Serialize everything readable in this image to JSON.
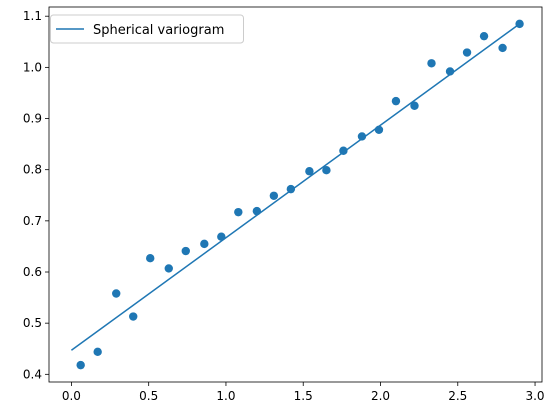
{
  "chart_data": {
    "type": "scatter",
    "title": "",
    "xlabel": "",
    "ylabel": "",
    "xlim": [
      -0.145,
      3.045
    ],
    "ylim": [
      0.385,
      1.118
    ],
    "xticks": [
      0.0,
      0.5,
      1.0,
      1.5,
      2.0,
      2.5,
      3.0
    ],
    "xtick_labels": [
      "0.0",
      "0.5",
      "1.0",
      "1.5",
      "2.0",
      "2.5",
      "3.0"
    ],
    "yticks": [
      0.4,
      0.5,
      0.6,
      0.7,
      0.8,
      0.9,
      1.0,
      1.1
    ],
    "ytick_labels": [
      "0.4",
      "0.5",
      "0.6",
      "0.7",
      "0.8",
      "0.9",
      "1.0",
      "1.1"
    ],
    "grid": false,
    "legend_position": "top-left",
    "series": [
      {
        "kind": "points",
        "color": "#1f77b4",
        "x": [
          0.06,
          0.17,
          0.29,
          0.4,
          0.51,
          0.63,
          0.74,
          0.86,
          0.97,
          1.08,
          1.2,
          1.31,
          1.42,
          1.54,
          1.65,
          1.76,
          1.88,
          1.99,
          2.1,
          2.22,
          2.33,
          2.45,
          2.56,
          2.67,
          2.79,
          2.9
        ],
        "y": [
          0.418,
          0.444,
          0.558,
          0.513,
          0.627,
          0.607,
          0.641,
          0.655,
          0.669,
          0.717,
          0.719,
          0.749,
          0.762,
          0.797,
          0.799,
          0.837,
          0.865,
          0.878,
          0.934,
          0.925,
          1.008,
          0.992,
          1.029,
          1.061,
          1.038,
          1.085
        ]
      },
      {
        "kind": "line",
        "name": "Spherical variogram",
        "color": "#1f77b4",
        "x": [
          0.0,
          2.9
        ],
        "y": [
          0.447,
          1.085
        ]
      }
    ]
  }
}
